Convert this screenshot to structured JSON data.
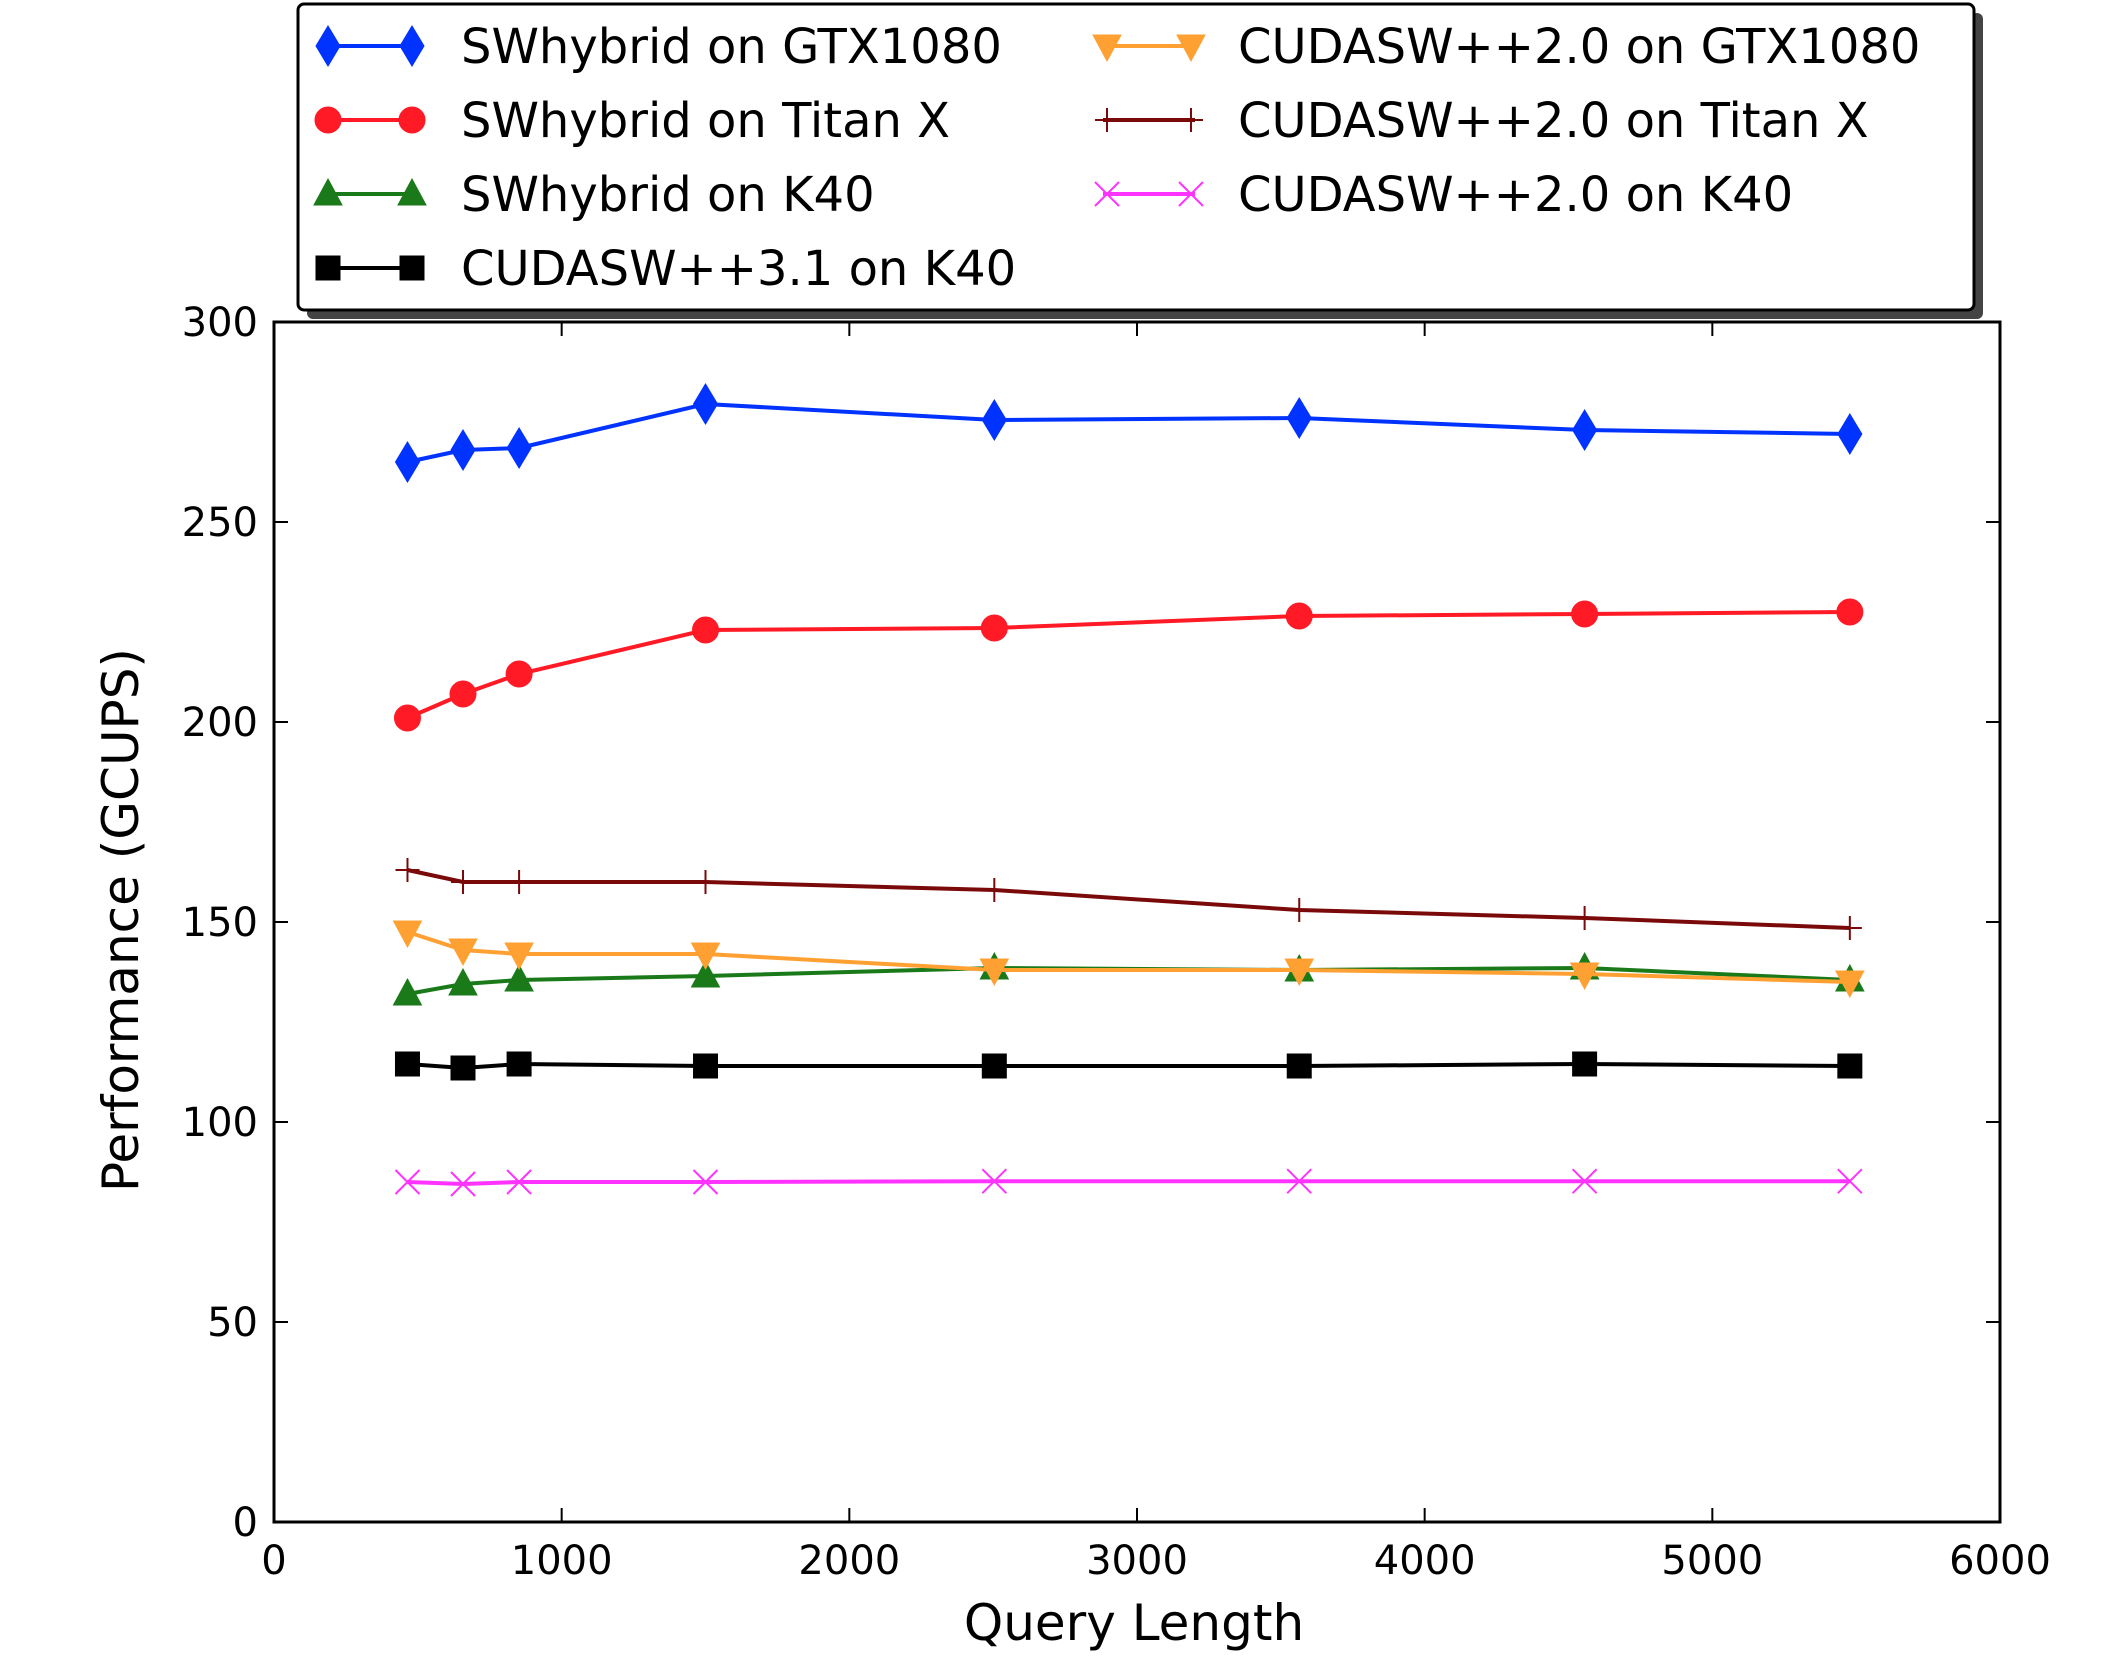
{
  "chart_data": {
    "type": "line",
    "xlabel": "Query Length",
    "ylabel": "Performance (GCUPS)",
    "xlim": [
      0,
      6000
    ],
    "ylim": [
      0,
      300
    ],
    "xticks": [
      0,
      1000,
      2000,
      3000,
      4000,
      5000,
      6000
    ],
    "yticks": [
      0,
      50,
      100,
      150,
      200,
      250,
      300
    ],
    "grid": false,
    "legend_placement": "top",
    "x": [
      464,
      657,
      852,
      1500,
      2504,
      3564,
      4556,
      5478
    ],
    "series": [
      {
        "name": "SWhybrid on GTX1080",
        "color": "#0033ff",
        "marker": "diamond",
        "values": [
          265,
          268,
          268.5,
          279.5,
          275.5,
          276,
          273,
          272
        ]
      },
      {
        "name": "SWhybrid on Titan X",
        "color": "#ff1a26",
        "marker": "circle",
        "values": [
          201,
          207,
          212,
          223,
          223.5,
          226.5,
          227,
          227.5
        ]
      },
      {
        "name": "SWhybrid on K40",
        "color": "#1a7a1a",
        "marker": "triangle-up",
        "values": [
          132,
          134.5,
          135.5,
          136.5,
          138.5,
          138,
          138.5,
          135.5
        ]
      },
      {
        "name": "CUDASW++3.1 on K40",
        "color": "#000000",
        "marker": "square",
        "values": [
          114.5,
          113.5,
          114.5,
          114,
          114,
          114,
          114.5,
          114
        ]
      },
      {
        "name": "CUDASW++2.0 on GTX1080",
        "color": "#ffa033",
        "marker": "triangle-down",
        "values": [
          147.5,
          143,
          142,
          142,
          138,
          138,
          137,
          135
        ]
      },
      {
        "name": "CUDASW++2.0 on Titan X",
        "color": "#7a0a0a",
        "marker": "plus",
        "values": [
          163,
          160,
          160,
          160,
          158,
          153,
          151,
          148.5
        ]
      },
      {
        "name": "CUDASW++2.0 on K40",
        "color": "#ff33ff",
        "marker": "x",
        "values": [
          85,
          84.5,
          85,
          85,
          85.2,
          85.2,
          85.2,
          85.2
        ]
      }
    ]
  }
}
